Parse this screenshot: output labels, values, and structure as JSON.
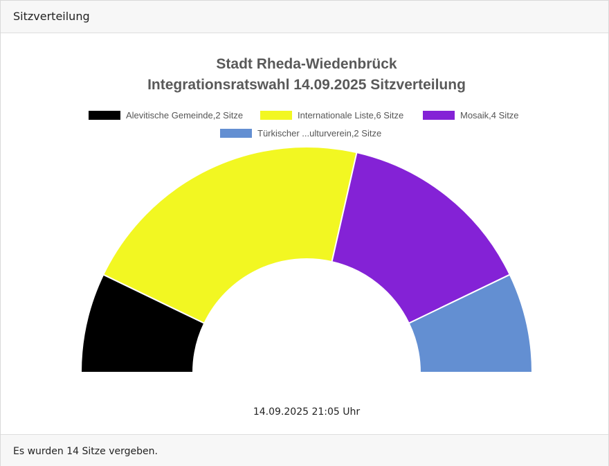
{
  "header": {
    "title": "Sitzverteilung"
  },
  "footer": {
    "text": "Es wurden 14 Sitze vergeben."
  },
  "chart_data": {
    "type": "pie",
    "variant": "half-donut",
    "title": "Stadt Rheda-Wiedenbrück",
    "subtitle": "Integrationsratswahl 14.09.2025 Sitzverteilung",
    "legend_position": "top",
    "total_seats": 14,
    "timestamp": "14.09.2025 21:05 Uhr",
    "series": [
      {
        "name": "Alevitische Gemeinde",
        "label": "Alevitische Gemeinde,2 Sitze",
        "value": 2,
        "color": "#000000"
      },
      {
        "name": "Internationale Liste",
        "label": "Internationale Liste,6 Sitze",
        "value": 6,
        "color": "#f2f722"
      },
      {
        "name": "Mosaik",
        "label": "Mosaik,4 Sitze",
        "value": 4,
        "color": "#8422d6"
      },
      {
        "name": "Türkischer ...ulturverein",
        "label": "Türkischer ...ulturverein,2 Sitze",
        "value": 2,
        "color": "#638fd2"
      }
    ]
  }
}
